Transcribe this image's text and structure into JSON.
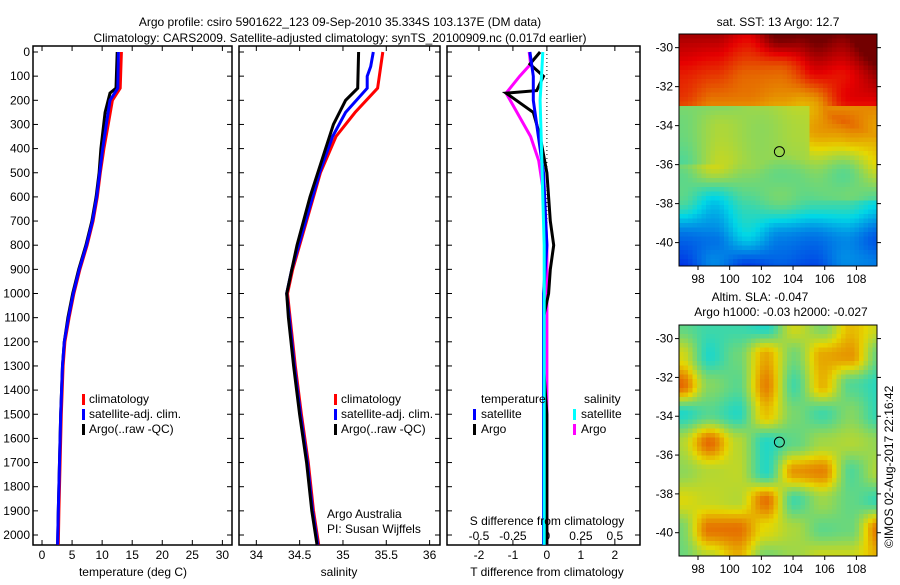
{
  "title": {
    "line1": "Argo profile: csiro 5901622_123 09-Sep-2010 35.334S 103.137E (DM data)",
    "line2": "Climatology: CARS2009. Satellite-adjusted climatology: synTS_20100909.nc (0.017d earlier)"
  },
  "credit": "©IMOS 02-Aug-2017 22:16:42",
  "attribution": {
    "line1": "Argo Australia",
    "line2": "PI: Susan Wijffels"
  },
  "colors": {
    "climatology": "#ff0000",
    "satellite": "#0000ff",
    "argo": "#000000",
    "sal_satellite": "#00ffff",
    "sal_argo": "#ff00ff"
  },
  "chart_data": [
    {
      "type": "line",
      "name": "temperature-profile",
      "xlabel": "temperature (deg C)",
      "ylabel": "",
      "xlim": [
        -1.5,
        31.6
      ],
      "ylim": [
        2040,
        0
      ],
      "xticks": [
        0,
        5,
        10,
        15,
        20,
        25,
        30
      ],
      "yticks": [
        0,
        100,
        200,
        300,
        400,
        500,
        600,
        700,
        800,
        900,
        1000,
        1100,
        1200,
        1300,
        1400,
        1500,
        1600,
        1700,
        1800,
        1900,
        2000
      ],
      "legend": [
        "climatology",
        "satellite-adj. clim.",
        "Argo(..raw -QC)"
      ],
      "legend_placement": "lower-right",
      "series": [
        {
          "name": "climatology",
          "depth": [
            0,
            150,
            200,
            300,
            400,
            500,
            600,
            700,
            800,
            900,
            1000,
            1100,
            1200,
            1300,
            1500,
            1700,
            1900,
            2040
          ],
          "values": [
            13.2,
            13.0,
            11.7,
            11.0,
            10.3,
            9.7,
            9.2,
            8.5,
            7.5,
            6.3,
            5.3,
            4.5,
            3.8,
            3.5,
            3.2,
            3.0,
            2.8,
            2.7
          ]
        },
        {
          "name": "satellite-adj. clim.",
          "depth": [
            0,
            150,
            200,
            300,
            400,
            500,
            600,
            700,
            800,
            900,
            1000,
            1100,
            1200,
            1300,
            1500,
            1700,
            1900,
            2040
          ],
          "values": [
            12.7,
            12.6,
            11.3,
            10.7,
            10.1,
            9.6,
            9.1,
            8.4,
            7.4,
            6.2,
            5.2,
            4.4,
            3.7,
            3.4,
            3.1,
            2.9,
            2.7,
            2.6
          ]
        },
        {
          "name": "Argo(..raw -QC)",
          "depth": [
            0,
            150,
            170,
            250,
            400,
            500,
            600,
            700,
            800,
            900,
            1000,
            1100,
            1200,
            1300,
            1500,
            1700,
            1900,
            2040
          ],
          "values": [
            12.5,
            12.3,
            11.3,
            10.5,
            9.8,
            9.5,
            9.0,
            8.3,
            7.3,
            6.1,
            5.1,
            4.3,
            3.7,
            3.4,
            3.1,
            2.9,
            2.7,
            2.6
          ]
        }
      ]
    },
    {
      "type": "line",
      "name": "salinity-profile",
      "xlabel": "salinity",
      "xlim": [
        33.8,
        36.12
      ],
      "ylim": [
        2040,
        0
      ],
      "xticks": [
        34,
        34.5,
        35,
        35.5,
        36
      ],
      "legend": [
        "climatology",
        "satellite-adj. clim.",
        "Argo(..raw -QC)"
      ],
      "legend_placement": "lower-right",
      "series": [
        {
          "name": "climatology",
          "depth": [
            0,
            150,
            250,
            350,
            500,
            700,
            900,
            1000,
            1100,
            1300,
            1500,
            1700,
            1900,
            2040
          ],
          "values": [
            35.46,
            35.4,
            35.14,
            34.92,
            34.74,
            34.58,
            34.42,
            34.36,
            34.39,
            34.45,
            34.52,
            34.6,
            34.66,
            34.72
          ]
        },
        {
          "name": "satellite-adj. clim.",
          "depth": [
            0,
            60,
            100,
            150,
            250,
            350,
            500,
            700,
            900,
            1000,
            1100,
            1300,
            1500,
            1700,
            1900,
            2040
          ],
          "values": [
            35.35,
            35.32,
            35.28,
            35.28,
            35.03,
            34.88,
            34.73,
            34.57,
            34.41,
            34.35,
            34.38,
            34.44,
            34.51,
            34.59,
            34.65,
            34.71
          ]
        },
        {
          "name": "Argo(..raw -QC)",
          "depth": [
            0,
            150,
            200,
            300,
            400,
            600,
            800,
            1000,
            1100,
            1300,
            1500,
            1700,
            1900,
            2040
          ],
          "values": [
            35.18,
            35.17,
            35.03,
            34.89,
            34.8,
            34.62,
            34.47,
            34.35,
            34.37,
            34.43,
            34.5,
            34.58,
            34.64,
            34.7
          ]
        }
      ]
    },
    {
      "type": "line",
      "name": "difference-profile",
      "xlabel": "T difference from climatology",
      "x2label": "S difference from climatology",
      "xlim": [
        -2.94,
        2.74
      ],
      "ylim": [
        2040,
        0
      ],
      "xticks": [
        -2,
        -1,
        0,
        1,
        2
      ],
      "x2ticks": [
        "-0.5",
        "-0.25",
        "0",
        "0.25",
        "0.5"
      ],
      "legend_temperature_title": "temperature",
      "legend_salinity_title": "salinity",
      "legend_temperature": [
        "satellite",
        "Argo"
      ],
      "legend_salinity": [
        "satellite",
        "Argo"
      ],
      "series": [
        {
          "name": "temperature satellite",
          "depth": [
            0,
            100,
            200,
            300,
            500,
            800,
            1000,
            1200,
            1500,
            2040
          ],
          "values": [
            -0.5,
            -0.4,
            -0.4,
            -0.3,
            -0.1,
            0.0,
            -0.1,
            -0.1,
            -0.1,
            -0.1
          ]
        },
        {
          "name": "temperature Argo",
          "depth": [
            0,
            50,
            100,
            160,
            170,
            250,
            350,
            500,
            700,
            800,
            900,
            1000,
            1100,
            1200,
            1300,
            1500,
            1800,
            2040
          ],
          "values": [
            -0.2,
            -0.5,
            -0.1,
            -0.3,
            -1.2,
            -0.4,
            -0.2,
            0.0,
            0.1,
            0.2,
            0.1,
            0.05,
            -0.1,
            -0.1,
            -0.1,
            0.0,
            0.0,
            0.0
          ]
        },
        {
          "name": "salinity satellite",
          "depth": [
            0,
            100,
            200,
            400,
            600,
            800,
            1000,
            1200,
            1500,
            1800,
            2040
          ],
          "values": [
            -0.03,
            -0.04,
            -0.05,
            -0.04,
            -0.03,
            -0.02,
            -0.02,
            -0.02,
            -0.02,
            -0.02,
            -0.02
          ]
        },
        {
          "name": "salinity Argo",
          "depth": [
            0,
            50,
            100,
            170,
            250,
            350,
            450,
            600,
            800,
            1000,
            1200,
            1500,
            1800,
            2040
          ],
          "values": [
            -0.13,
            -0.12,
            -0.2,
            -0.3,
            -0.22,
            -0.12,
            -0.06,
            -0.02,
            0.0,
            0.0,
            0.0,
            0.0,
            0.0,
            0.0
          ]
        }
      ]
    },
    {
      "type": "heatmap",
      "name": "sst-map",
      "title": "sat. SST: 13 Argo: 12.7",
      "xlim": [
        96.8,
        109.3
      ],
      "ylim": [
        -41.2,
        -29.3
      ],
      "xticks": [
        98,
        100,
        102,
        104,
        106,
        108
      ],
      "yticks": [
        -30,
        -32,
        -34,
        -36,
        -38,
        -40
      ],
      "marker": {
        "lon": 103.137,
        "lat": -35.334
      }
    },
    {
      "type": "heatmap",
      "name": "sla-map",
      "title1": "Altim. SLA: -0.047",
      "title2": "Argo h1000: -0.03 h2000: -0.027",
      "xlim": [
        96.8,
        109.3
      ],
      "ylim": [
        -41.2,
        -29.3
      ],
      "xticks": [
        98,
        100,
        102,
        104,
        106,
        108
      ],
      "yticks": [
        -30,
        -32,
        -34,
        -36,
        -38,
        -40
      ],
      "marker": {
        "lon": 103.137,
        "lat": -35.334
      }
    }
  ]
}
